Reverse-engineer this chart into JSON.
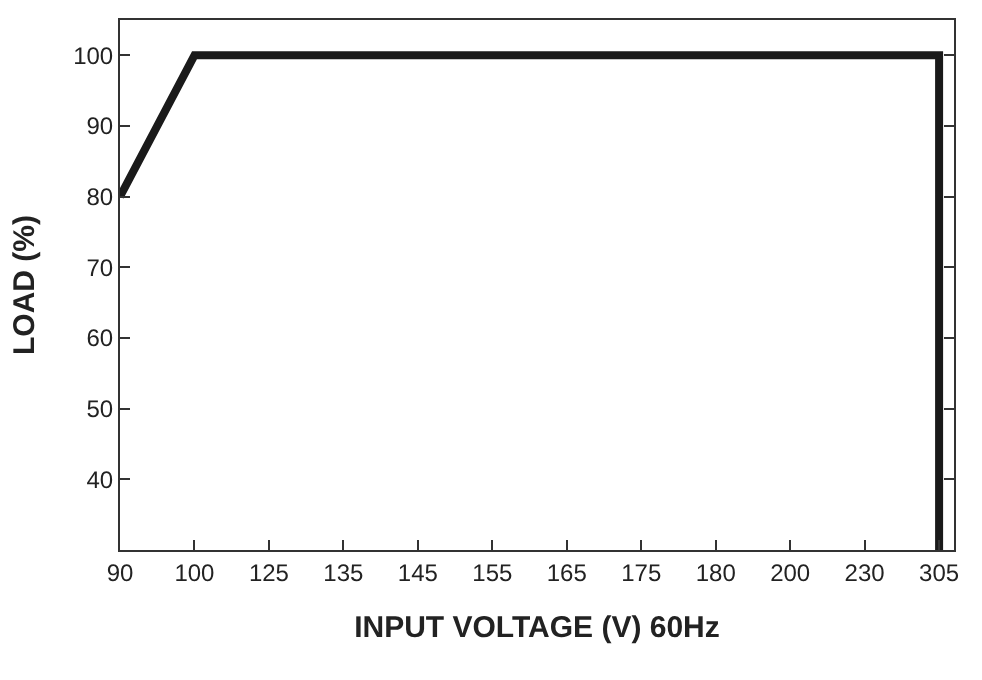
{
  "chart_data": {
    "type": "line",
    "xlabel": "INPUT VOLTAGE (V) 60Hz",
    "ylabel": "LOAD (%)",
    "categories": [
      "90",
      "100",
      "125",
      "135",
      "145",
      "155",
      "165",
      "175",
      "180",
      "200",
      "230",
      "305"
    ],
    "series": [
      {
        "color": "#1a1a1a",
        "x": [
          "90",
          "100",
          "305",
          "305"
        ],
        "values": [
          80,
          100,
          100,
          30
        ]
      }
    ],
    "ylim": [
      30,
      105
    ],
    "yticks": [
      40,
      50,
      60,
      70,
      80,
      90,
      100
    ],
    "marker": "none",
    "line_style": "solid"
  }
}
